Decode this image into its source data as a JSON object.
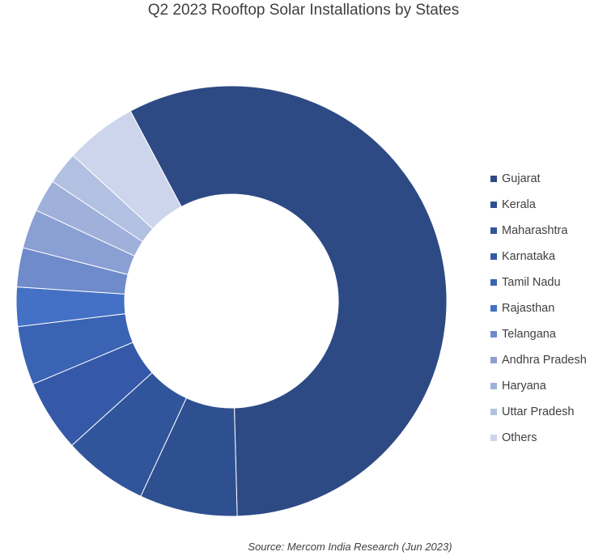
{
  "chart_data": {
    "type": "pie",
    "title": "Q2 2023 Rooftop Solar Installations by States",
    "source": "Source: Mercom India Research (Jun 2023)",
    "legend_position": "right",
    "series": [
      {
        "name": "Gujarat",
        "value": 58.5,
        "color": "#2e4a85"
      },
      {
        "name": "Kerala",
        "value": 7.5,
        "color": "#2e5090"
      },
      {
        "name": "Maharashtra",
        "value": 6.5,
        "color": "#30559b"
      },
      {
        "name": "Karnataka",
        "value": 5.5,
        "color": "#3559a8"
      },
      {
        "name": "Tamil Nadu",
        "value": 4.5,
        "color": "#3a63b4"
      },
      {
        "name": "Rajasthan",
        "value": 3.0,
        "color": "#4470c6"
      },
      {
        "name": "Telangana",
        "value": 3.0,
        "color": "#6f8bcb"
      },
      {
        "name": "Andhra Pradesh",
        "value": 3.0,
        "color": "#8a9fd3"
      },
      {
        "name": "Haryana",
        "value": 2.5,
        "color": "#9fb0da"
      },
      {
        "name": "Uttar Pradesh",
        "value": 2.5,
        "color": "#b2c0e2"
      },
      {
        "name": "Others",
        "value": 5.5,
        "color": "#cdd5ec"
      }
    ]
  }
}
